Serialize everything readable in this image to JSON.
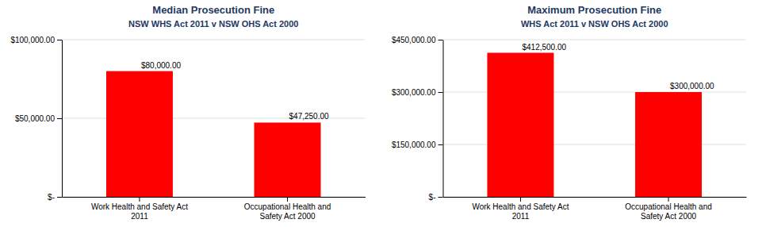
{
  "chart_data": [
    {
      "type": "bar",
      "title": "Median Prosecution Fine",
      "subtitle": "NSW WHS Act 2011 v NSW OHS Act 2000",
      "categories": [
        "Work Health and Safety Act\n2011",
        "Occupational Health and\nSafety Act 2000"
      ],
      "values": [
        80000,
        47250
      ],
      "value_labels": [
        "$80,000.00",
        "$47,250.00"
      ],
      "ylim": [
        0,
        100000
      ],
      "yticks": [
        {
          "value": 0,
          "label": "$-"
        },
        {
          "value": 50000,
          "label": "$50,000.00"
        },
        {
          "value": 100000,
          "label": "$100,000.00"
        }
      ],
      "color": "#FF0000",
      "grid": true,
      "data_labels": true
    },
    {
      "type": "bar",
      "title": "Maximum Prosecution Fine",
      "subtitle": "WHS Act 2011 v NSW OHS Act 2000",
      "categories": [
        "Work Health and Safety Act\n2011",
        "Occupational Health and\nSafety Act 2000"
      ],
      "values": [
        412500,
        300000
      ],
      "value_labels": [
        "$412,500.00",
        "$300,000.00"
      ],
      "ylim": [
        0,
        450000
      ],
      "yticks": [
        {
          "value": 0,
          "label": "$-"
        },
        {
          "value": 150000,
          "label": "$150,000.00"
        },
        {
          "value": 300000,
          "label": "$300,000.00"
        },
        {
          "value": 450000,
          "label": "$450,000.00"
        }
      ],
      "color": "#FF0000",
      "grid": true,
      "data_labels": true
    }
  ]
}
